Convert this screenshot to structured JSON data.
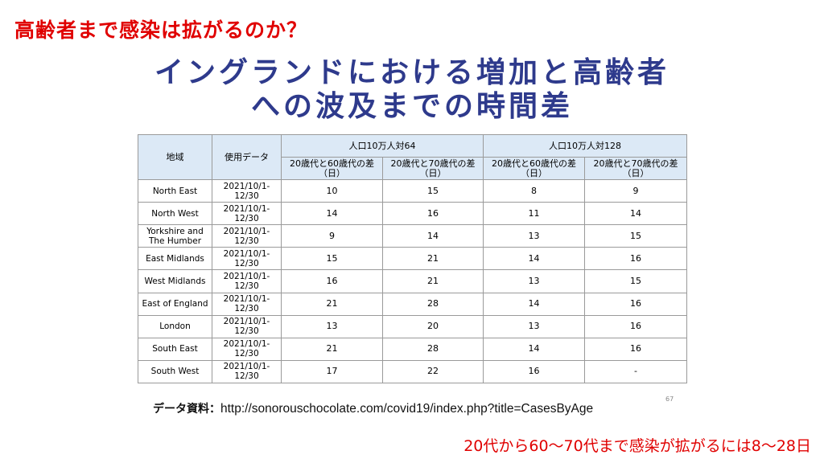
{
  "slide_title": "高齢者まで感染は拡がるのか？",
  "heading": {
    "line1": "イングランドにおける増加と高齢者",
    "line2": "への波及までの時間差"
  },
  "table": {
    "headers": {
      "region": "地域",
      "period": "使用データ",
      "group64": "人口10万人対64",
      "group128": "人口10万人対128",
      "col_60": "20歳代と60歳代の差（日）",
      "col_70": "20歳代と70歳代の差（日）"
    },
    "rows": [
      {
        "region": "North East",
        "period": "2021/10/1-12/30",
        "a60": "10",
        "a70": "15",
        "b60": "8",
        "b70": "9"
      },
      {
        "region": "North West",
        "period": "2021/10/1-12/30",
        "a60": "14",
        "a70": "16",
        "b60": "11",
        "b70": "14"
      },
      {
        "region": "Yorkshire and The Humber",
        "period": "2021/10/1-12/30",
        "a60": "9",
        "a70": "14",
        "b60": "13",
        "b70": "15"
      },
      {
        "region": "East Midlands",
        "period": "2021/10/1-12/30",
        "a60": "15",
        "a70": "21",
        "b60": "14",
        "b70": "16"
      },
      {
        "region": "West Midlands",
        "period": "2021/10/1-12/30",
        "a60": "16",
        "a70": "21",
        "b60": "13",
        "b70": "15"
      },
      {
        "region": "East of England",
        "period": "2021/10/1-12/30",
        "a60": "21",
        "a70": "28",
        "b60": "14",
        "b70": "16"
      },
      {
        "region": "London",
        "period": "2021/10/1-12/30",
        "a60": "13",
        "a70": "20",
        "b60": "13",
        "b70": "16"
      },
      {
        "region": "South East",
        "period": "2021/10/1-12/30",
        "a60": "21",
        "a70": "28",
        "b60": "14",
        "b70": "16"
      },
      {
        "region": "South West",
        "period": "2021/10/1-12/30",
        "a60": "17",
        "a70": "22",
        "b60": "16",
        "b70": "-"
      }
    ]
  },
  "source": {
    "label": "データ資料：",
    "url": "http://sonorouschocolate.com/covid19/index.php?title=CasesByAge"
  },
  "page_number": "67",
  "conclusion": "20代から60～70代まで感染が拡がるには8～28日",
  "colors": {
    "title_red": "#e00000",
    "heading_navy": "#2e3a8c",
    "header_fill": "#dce9f6"
  }
}
